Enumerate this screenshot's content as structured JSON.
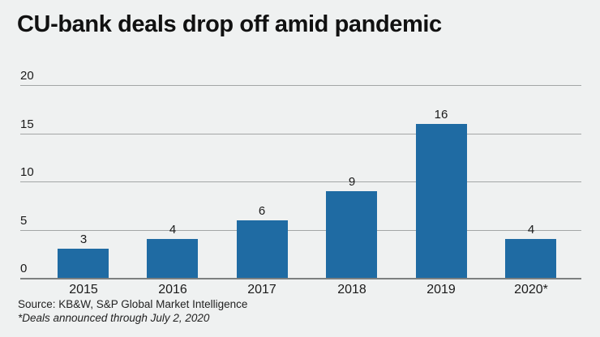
{
  "title": "CU-bank deals drop off amid pandemic",
  "footer": {
    "source": "Source: KB&W, S&P Global Market Intelligence",
    "footnote": "*Deals announced through July 2, 2020"
  },
  "colors": {
    "background": "#eff1f1",
    "bar": "#1f6ba3",
    "gridline": "#a3a6a6",
    "axis_line": "#7d8080",
    "text": "#1a1a1a"
  },
  "chart_data": {
    "type": "bar",
    "title": "CU-bank deals drop off amid pandemic",
    "categories": [
      "2015",
      "2016",
      "2017",
      "2018",
      "2019",
      "2020*"
    ],
    "values": [
      3,
      4,
      6,
      9,
      16,
      4
    ],
    "xlabel": "",
    "ylabel": "",
    "ylim": [
      0,
      20
    ],
    "yticks": [
      0,
      5,
      10,
      15,
      20
    ],
    "grid": true,
    "legend": "none",
    "bar_labels": [
      3,
      4,
      6,
      9,
      16,
      4
    ]
  }
}
